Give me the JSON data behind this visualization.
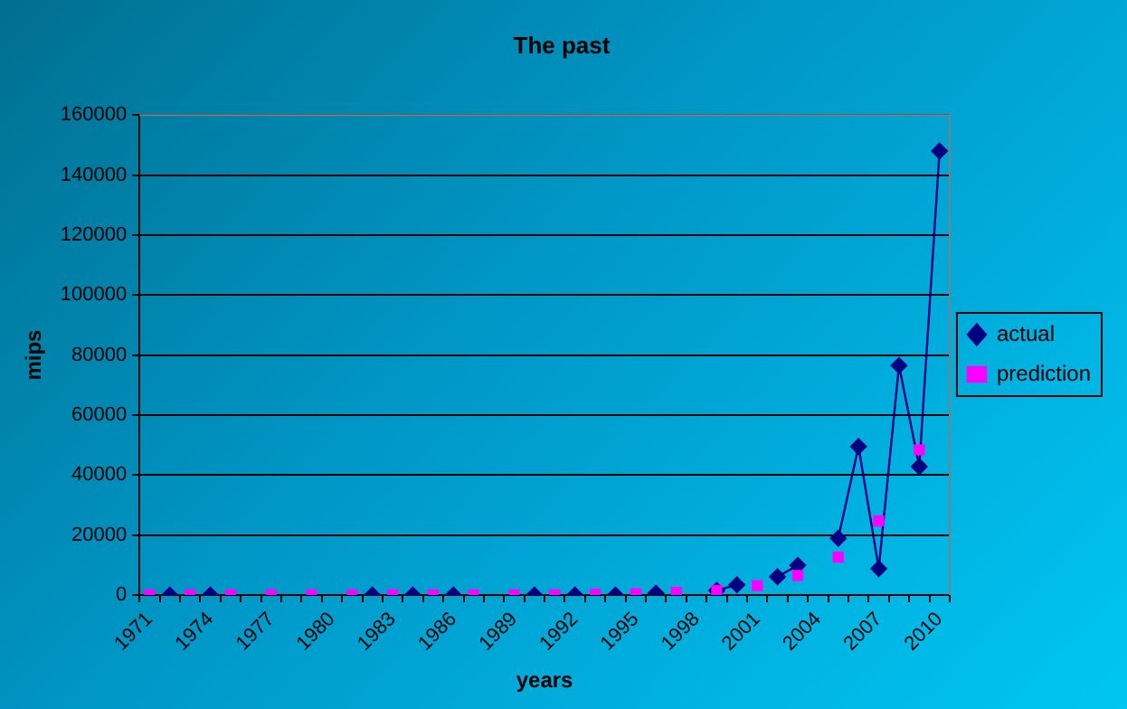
{
  "chart_data": {
    "type": "line",
    "title": "The past",
    "xlabel": "years",
    "ylabel": "mips",
    "categories": [
      "1971",
      null,
      null,
      "1974",
      null,
      null,
      "1977",
      null,
      null,
      "1980",
      null,
      null,
      "1983",
      null,
      null,
      "1986",
      null,
      null,
      "1989",
      null,
      null,
      "1992",
      null,
      null,
      "1995",
      null,
      null,
      "1998",
      null,
      null,
      "2001",
      null,
      null,
      "2004",
      null,
      null,
      "2007",
      null,
      null,
      "2010"
    ],
    "series": [
      {
        "name": "actual",
        "color": "#000080",
        "marker": "diamond",
        "values": [
          null,
          0,
          null,
          0,
          null,
          null,
          null,
          null,
          null,
          null,
          null,
          0,
          null,
          0,
          null,
          0,
          null,
          null,
          null,
          0,
          null,
          0,
          null,
          0,
          null,
          600,
          null,
          null,
          1500,
          3400,
          null,
          6100,
          9900,
          null,
          18900,
          49500,
          8800,
          76500,
          42800,
          148000
        ]
      },
      {
        "name": "prediction",
        "type": "scatter",
        "color": "#ff00ff",
        "marker": "square",
        "values": [
          0,
          null,
          0,
          null,
          0,
          null,
          0,
          null,
          0,
          null,
          0,
          null,
          0,
          null,
          0,
          null,
          0,
          null,
          0,
          null,
          0,
          null,
          200,
          null,
          400,
          null,
          800,
          null,
          1500,
          null,
          3100,
          null,
          6500,
          null,
          12600,
          null,
          24700,
          null,
          48400,
          null
        ]
      }
    ],
    "ylim": [
      0,
      160000
    ],
    "yticks": [
      0,
      20000,
      40000,
      60000,
      80000,
      100000,
      120000,
      140000,
      160000
    ],
    "grid": "y",
    "legend": "right"
  }
}
